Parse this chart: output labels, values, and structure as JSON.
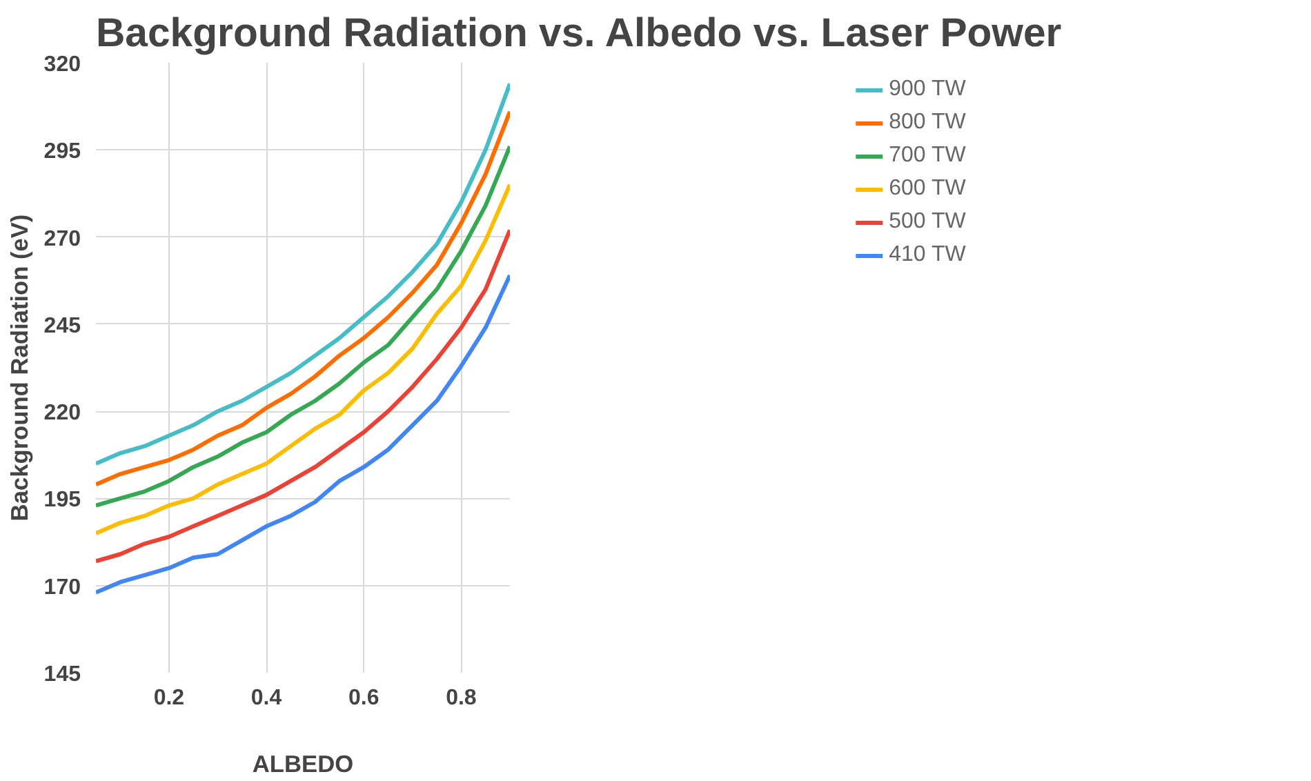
{
  "chart_data": {
    "type": "line",
    "title": "Background Radiation vs. Albedo vs. Laser Power",
    "xlabel": "ALBEDO",
    "ylabel": "Background Radiation (eV)",
    "x": [
      0.05,
      0.1,
      0.15,
      0.2,
      0.25,
      0.3,
      0.35,
      0.4,
      0.45,
      0.5,
      0.55,
      0.6,
      0.65,
      0.7,
      0.75,
      0.8,
      0.85,
      0.9
    ],
    "series": [
      {
        "name": "900 TW",
        "color": "#46bdc6",
        "values": [
          205,
          208,
          210,
          213,
          216,
          220,
          223,
          227,
          231,
          236,
          241,
          247,
          253,
          260,
          268,
          280,
          295,
          314
        ]
      },
      {
        "name": "800 TW",
        "color": "#ff6d01",
        "values": [
          199,
          202,
          204,
          206,
          209,
          213,
          216,
          221,
          225,
          230,
          236,
          241,
          247,
          254,
          262,
          274,
          288,
          306
        ]
      },
      {
        "name": "700 TW",
        "color": "#34a853",
        "values": [
          193,
          195,
          197,
          200,
          204,
          207,
          211,
          214,
          219,
          223,
          228,
          234,
          239,
          247,
          255,
          266,
          279,
          296
        ]
      },
      {
        "name": "600 TW",
        "color": "#fbbc04",
        "values": [
          185,
          188,
          190,
          193,
          195,
          199,
          202,
          205,
          210,
          215,
          219,
          226,
          231,
          238,
          248,
          256,
          269,
          285
        ]
      },
      {
        "name": "500 TW",
        "color": "#ea4335",
        "values": [
          177,
          179,
          182,
          184,
          187,
          190,
          193,
          196,
          200,
          204,
          209,
          214,
          220,
          227,
          235,
          244,
          255,
          272
        ]
      },
      {
        "name": "410 TW",
        "color": "#4285f4",
        "values": [
          168,
          171,
          173,
          175,
          178,
          179,
          183,
          187,
          190,
          194,
          200,
          204,
          209,
          216,
          223,
          233,
          244,
          259
        ]
      }
    ],
    "xlim": [
      0.05,
      0.9
    ],
    "ylim": [
      145,
      320
    ],
    "xticks": [
      {
        "value": 0.2,
        "label": "0.2"
      },
      {
        "value": 0.4,
        "label": "0.4"
      },
      {
        "value": 0.6,
        "label": "0.6"
      },
      {
        "value": 0.8,
        "label": "0.8"
      }
    ],
    "yticks": [
      145,
      170,
      195,
      220,
      245,
      270,
      295,
      320
    ],
    "grid": true,
    "legend": "right",
    "marker": "none",
    "line_style": "solid"
  }
}
